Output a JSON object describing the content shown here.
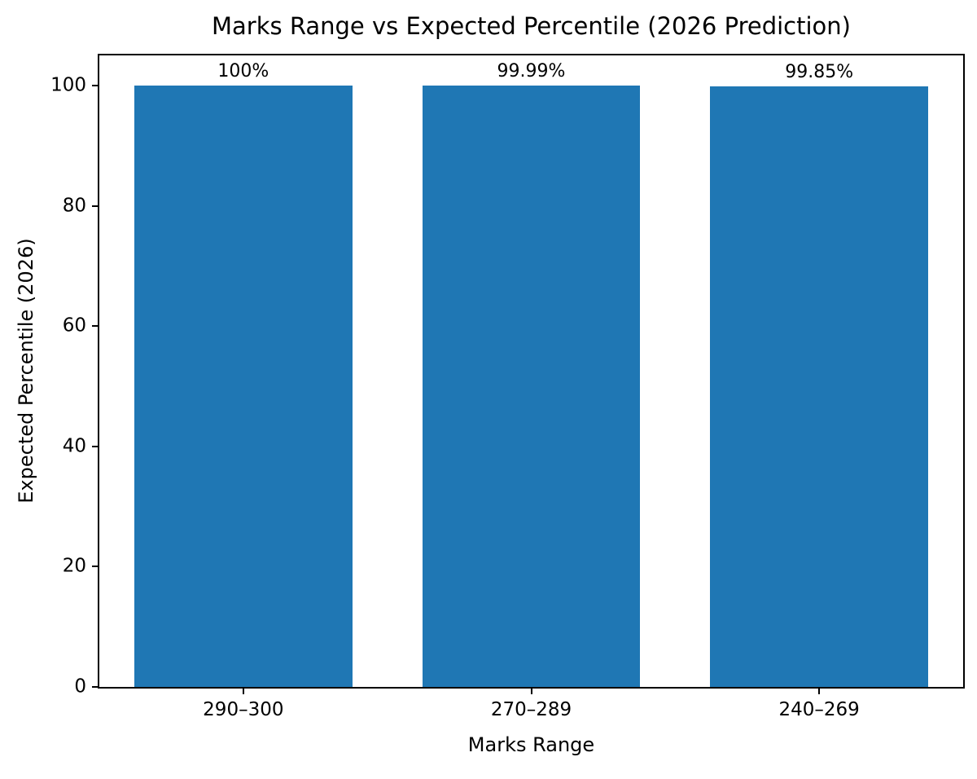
{
  "chart_data": {
    "type": "bar",
    "title": "Marks Range vs Expected Percentile (2026 Prediction)",
    "xlabel": "Marks Range",
    "ylabel": "Expected Percentile (2026)",
    "categories": [
      "290–300",
      "270–289",
      "240–269"
    ],
    "values": [
      100,
      99.99,
      99.85
    ],
    "value_labels": [
      "100%",
      "99.99%",
      "99.85%"
    ],
    "yticks": [
      0,
      20,
      40,
      60,
      80,
      100
    ],
    "ylim": [
      0,
      105
    ],
    "grid": false,
    "legend_position": "none",
    "bar_color": "#1f77b4",
    "axis_color": "#000000",
    "text_color": "#000000",
    "background_color": "#ffffff",
    "bar_width_frac": 0.252
  }
}
